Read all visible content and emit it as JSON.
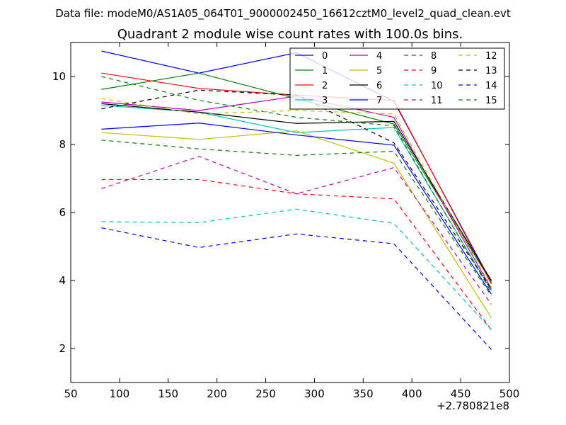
{
  "chart_data": {
    "type": "line",
    "suptitle": "Data file: modeM0/AS1A05_064T01_9000002450_16612cztM0_level2_quad_clean.evt",
    "title": "Quadrant 2 module wise count rates with 100.0s bins.",
    "xlabel": "",
    "ylabel": "",
    "x_offset_label": "+2.780821e8",
    "xlim": [
      50,
      500
    ],
    "ylim": [
      1,
      11
    ],
    "xticks": [
      50,
      100,
      150,
      200,
      250,
      300,
      350,
      400,
      450,
      500
    ],
    "yticks": [
      2,
      4,
      6,
      8,
      10
    ],
    "grid": false,
    "legend_position": "top-right",
    "x": [
      81.5,
      181.5,
      281.5,
      381.5,
      481.5
    ],
    "series": [
      {
        "name": "0",
        "color": "#0000ff",
        "dash": "solid",
        "values": [
          10.75,
          10.1,
          10.7,
          9.27,
          3.95
        ]
      },
      {
        "name": "1",
        "color": "#008000",
        "dash": "solid",
        "values": [
          9.62,
          10.1,
          9.35,
          8.6,
          3.95
        ]
      },
      {
        "name": "2",
        "color": "#ff0000",
        "dash": "solid",
        "values": [
          10.1,
          9.65,
          9.45,
          9.3,
          3.9
        ]
      },
      {
        "name": "3",
        "color": "#00bfbf",
        "dash": "solid",
        "values": [
          9.15,
          8.95,
          8.35,
          8.5,
          3.7
        ]
      },
      {
        "name": "4",
        "color": "#bf00bf",
        "dash": "solid",
        "values": [
          9.25,
          9.0,
          9.42,
          8.8,
          3.75
        ]
      },
      {
        "name": "5",
        "color": "#bfbf00",
        "dash": "solid",
        "values": [
          8.35,
          8.15,
          8.4,
          7.45,
          2.9
        ]
      },
      {
        "name": "6",
        "color": "#000000",
        "dash": "solid",
        "values": [
          9.2,
          8.95,
          8.62,
          8.68,
          4.0
        ]
      },
      {
        "name": "7",
        "color": "#0000ff",
        "dash": "solid",
        "values": [
          8.45,
          8.63,
          8.28,
          7.98,
          3.6
        ]
      },
      {
        "name": "8",
        "color": "#008000",
        "dash": "dashed",
        "values": [
          10.0,
          9.3,
          8.8,
          8.55,
          3.65
        ]
      },
      {
        "name": "9",
        "color": "#ff0000",
        "dash": "dashed",
        "values": [
          6.97,
          6.97,
          6.55,
          6.4,
          2.55
        ]
      },
      {
        "name": "10",
        "color": "#00bfbf",
        "dash": "dashed",
        "values": [
          5.73,
          5.7,
          6.1,
          5.68,
          2.55
        ]
      },
      {
        "name": "11",
        "color": "#bf00bf",
        "dash": "dashed",
        "values": [
          6.7,
          7.65,
          6.55,
          7.32,
          3.3
        ]
      },
      {
        "name": "12",
        "color": "#bfbf00",
        "dash": "dashed",
        "values": [
          9.35,
          8.9,
          9.0,
          8.9,
          3.8
        ]
      },
      {
        "name": "13",
        "color": "#000000",
        "dash": "dashed",
        "values": [
          9.05,
          9.6,
          9.45,
          8.05,
          3.75
        ]
      },
      {
        "name": "14",
        "color": "#0000ff",
        "dash": "dashed",
        "values": [
          5.55,
          4.97,
          5.37,
          5.08,
          1.97
        ]
      },
      {
        "name": "15",
        "color": "#008000",
        "dash": "dashed",
        "values": [
          8.13,
          7.87,
          7.68,
          7.8,
          3.55
        ]
      }
    ]
  }
}
